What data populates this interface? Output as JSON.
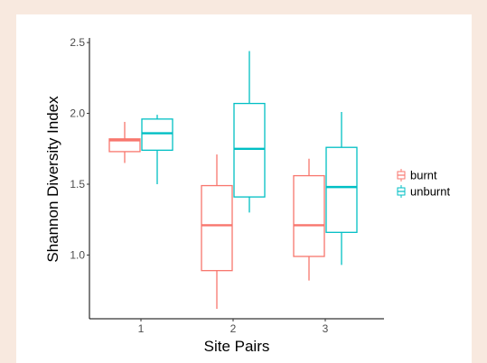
{
  "chart_data": {
    "type": "boxplot",
    "title": "",
    "xlabel": "Site Pairs",
    "ylabel": "Shannon Diversity Index",
    "categories": [
      "1",
      "2",
      "3"
    ],
    "ylim": [
      0.55,
      2.52
    ],
    "yticks": [
      1.0,
      1.5,
      2.0,
      2.5
    ],
    "ytick_labels": [
      "1.0",
      "1.5",
      "2.0",
      "2.5"
    ],
    "grid": false,
    "legend_position": "right",
    "series": [
      {
        "name": "burnt",
        "color": "#f8766d",
        "boxes": [
          {
            "category": "1",
            "min": 1.65,
            "q1": 1.73,
            "median": 1.81,
            "q3": 1.82,
            "max": 1.94
          },
          {
            "category": "2",
            "min": 0.62,
            "q1": 0.89,
            "median": 1.21,
            "q3": 1.49,
            "max": 1.71
          },
          {
            "category": "3",
            "min": 0.82,
            "q1": 0.99,
            "median": 1.21,
            "q3": 1.56,
            "max": 1.68
          }
        ]
      },
      {
        "name": "unburnt",
        "color": "#00bfc4",
        "boxes": [
          {
            "category": "1",
            "min": 1.5,
            "q1": 1.74,
            "median": 1.86,
            "q3": 1.96,
            "max": 1.99
          },
          {
            "category": "2",
            "min": 1.3,
            "q1": 1.41,
            "median": 1.75,
            "q3": 2.07,
            "max": 2.44
          },
          {
            "category": "3",
            "min": 0.93,
            "q1": 1.16,
            "median": 1.48,
            "q3": 1.76,
            "max": 2.01
          }
        ]
      }
    ]
  }
}
